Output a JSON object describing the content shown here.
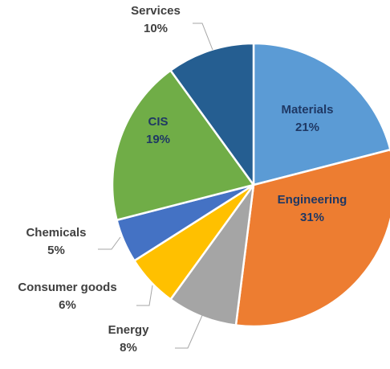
{
  "chart_data": {
    "type": "pie",
    "title": "",
    "slices": [
      {
        "label": "Materials",
        "value": 21,
        "value_label": "21%",
        "color": "#5b9bd5"
      },
      {
        "label": "Engineering",
        "value": 31,
        "value_label": "31%",
        "color": "#ed7d31"
      },
      {
        "label": "Energy",
        "value": 8,
        "value_label": "8%",
        "color": "#a5a5a5"
      },
      {
        "label": "Consumer goods",
        "value": 6,
        "value_label": "6%",
        "color": "#ffc000"
      },
      {
        "label": "Chemicals",
        "value": 5,
        "value_label": "5%",
        "color": "#4472c4"
      },
      {
        "label": "CIS",
        "value": 19,
        "value_label": "19%",
        "color": "#70ad47"
      },
      {
        "label": "Services",
        "value": 10,
        "value_label": "10%",
        "color": "#255e91"
      }
    ],
    "start_angle": "12 o'clock",
    "direction": "clockwise",
    "legend": "none"
  }
}
